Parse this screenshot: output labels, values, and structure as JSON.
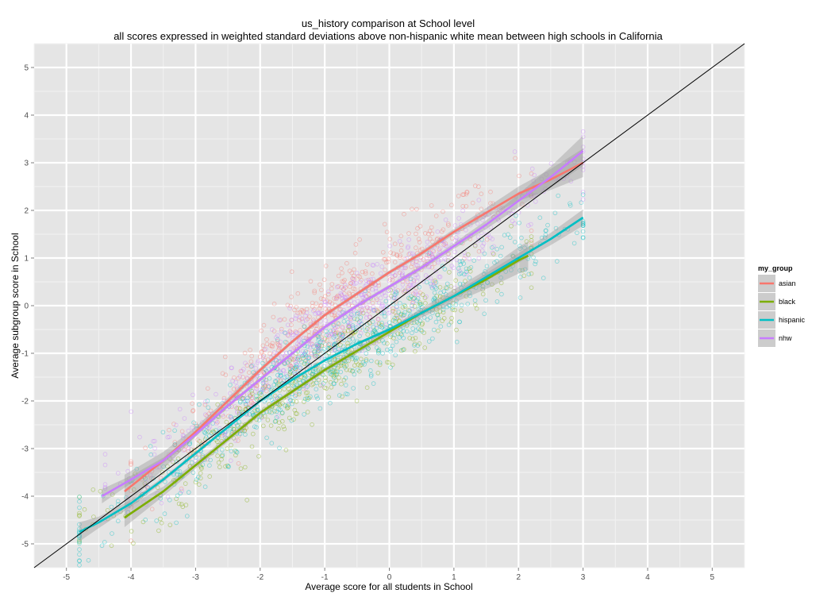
{
  "chart_data": {
    "type": "scatter",
    "title": "us_history comparison at School level",
    "subtitle": "all scores expressed in weighted standard deviations above non-hispanic white mean between high schools in California",
    "xlabel": "Average score for all students in School",
    "ylabel": "Average subgroup score in School",
    "xlim": [
      -5.5,
      5.5
    ],
    "ylim": [
      -5.5,
      5.5
    ],
    "x_ticks": [
      "-5",
      "-4",
      "-3",
      "-2",
      "-1",
      "0",
      "1",
      "2",
      "3",
      "4",
      "5"
    ],
    "y_ticks": [
      "5",
      "4",
      "3",
      "2",
      "1",
      "0",
      "-1",
      "-2",
      "-3",
      "-4",
      "-5"
    ],
    "grid": true,
    "reference_line": {
      "slope": 1,
      "intercept": 0,
      "color": "#000000"
    },
    "legend": {
      "title": "my_group",
      "position": "right",
      "entries": [
        "asian",
        "black",
        "hispanic",
        "nhw"
      ]
    },
    "series": [
      {
        "name": "asian",
        "color": "#F8766D",
        "smooth": [
          {
            "x": -4.1,
            "y": -3.9,
            "ci": 0.35
          },
          {
            "x": -3.5,
            "y": -3.25,
            "ci": 0.18
          },
          {
            "x": -3.0,
            "y": -2.65,
            "ci": 0.1
          },
          {
            "x": -2.5,
            "y": -2.0,
            "ci": 0.07
          },
          {
            "x": -2.0,
            "y": -1.35,
            "ci": 0.05
          },
          {
            "x": -1.5,
            "y": -0.75,
            "ci": 0.04
          },
          {
            "x": -1.0,
            "y": -0.2,
            "ci": 0.04
          },
          {
            "x": -0.5,
            "y": 0.25,
            "ci": 0.04
          },
          {
            "x": 0.0,
            "y": 0.7,
            "ci": 0.04
          },
          {
            "x": 0.5,
            "y": 1.1,
            "ci": 0.05
          },
          {
            "x": 1.0,
            "y": 1.55,
            "ci": 0.06
          },
          {
            "x": 1.5,
            "y": 1.95,
            "ci": 0.1
          },
          {
            "x": 2.0,
            "y": 2.35,
            "ci": 0.15
          },
          {
            "x": 2.5,
            "y": 2.65,
            "ci": 0.22
          },
          {
            "x": 3.0,
            "y": 3.0,
            "ci": 0.3
          }
        ],
        "cloud": {
          "x_min": -4.0,
          "x_max": 2.2,
          "center_offset": 0.55,
          "spread": 0.45,
          "n": 500
        }
      },
      {
        "name": "black",
        "color": "#7CAE00",
        "smooth": [
          {
            "x": -4.1,
            "y": -4.45,
            "ci": 0.2
          },
          {
            "x": -3.5,
            "y": -3.9,
            "ci": 0.1
          },
          {
            "x": -3.0,
            "y": -3.35,
            "ci": 0.07
          },
          {
            "x": -2.5,
            "y": -2.8,
            "ci": 0.06
          },
          {
            "x": -2.0,
            "y": -2.25,
            "ci": 0.05
          },
          {
            "x": -1.5,
            "y": -1.8,
            "ci": 0.05
          },
          {
            "x": -1.0,
            "y": -1.35,
            "ci": 0.05
          },
          {
            "x": -0.5,
            "y": -0.95,
            "ci": 0.06
          },
          {
            "x": 0.0,
            "y": -0.55,
            "ci": 0.07
          },
          {
            "x": 0.5,
            "y": -0.15,
            "ci": 0.1
          },
          {
            "x": 1.0,
            "y": 0.2,
            "ci": 0.14
          },
          {
            "x": 1.5,
            "y": 0.55,
            "ci": 0.2
          },
          {
            "x": 2.0,
            "y": 0.95,
            "ci": 0.28
          },
          {
            "x": 2.15,
            "y": 1.05,
            "ci": 0.3
          }
        ],
        "cloud": {
          "x_min": -4.8,
          "x_max": 2.2,
          "center_offset": -0.3,
          "spread": 0.4,
          "n": 450
        }
      },
      {
        "name": "hispanic",
        "color": "#00BFC4",
        "smooth": [
          {
            "x": -4.8,
            "y": -4.75,
            "ci": 0.2
          },
          {
            "x": -4.5,
            "y": -4.55,
            "ci": 0.12
          },
          {
            "x": -4.0,
            "y": -4.15,
            "ci": 0.07
          },
          {
            "x": -3.5,
            "y": -3.65,
            "ci": 0.05
          },
          {
            "x": -3.0,
            "y": -3.1,
            "ci": 0.04
          },
          {
            "x": -2.5,
            "y": -2.55,
            "ci": 0.03
          },
          {
            "x": -2.0,
            "y": -2.0,
            "ci": 0.03
          },
          {
            "x": -1.5,
            "y": -1.55,
            "ci": 0.03
          },
          {
            "x": -1.0,
            "y": -1.15,
            "ci": 0.03
          },
          {
            "x": -0.5,
            "y": -0.8,
            "ci": 0.03
          },
          {
            "x": 0.0,
            "y": -0.5,
            "ci": 0.04
          },
          {
            "x": 0.5,
            "y": -0.15,
            "ci": 0.05
          },
          {
            "x": 1.0,
            "y": 0.2,
            "ci": 0.06
          },
          {
            "x": 1.5,
            "y": 0.6,
            "ci": 0.08
          },
          {
            "x": 2.0,
            "y": 1.0,
            "ci": 0.1
          },
          {
            "x": 2.5,
            "y": 1.4,
            "ci": 0.13
          },
          {
            "x": 3.0,
            "y": 1.85,
            "ci": 0.17
          }
        ],
        "cloud": {
          "x_min": -4.8,
          "x_max": 3.0,
          "center_offset": -0.25,
          "spread": 0.4,
          "n": 700
        }
      },
      {
        "name": "nhw",
        "color": "#C77CFF",
        "smooth": [
          {
            "x": -4.45,
            "y": -4.0,
            "ci": 0.15
          },
          {
            "x": -4.0,
            "y": -3.65,
            "ci": 0.08
          },
          {
            "x": -3.5,
            "y": -3.25,
            "ci": 0.06
          },
          {
            "x": -3.0,
            "y": -2.7,
            "ci": 0.05
          },
          {
            "x": -2.5,
            "y": -2.1,
            "ci": 0.04
          },
          {
            "x": -2.0,
            "y": -1.55,
            "ci": 0.04
          },
          {
            "x": -1.5,
            "y": -1.0,
            "ci": 0.04
          },
          {
            "x": -1.0,
            "y": -0.45,
            "ci": 0.04
          },
          {
            "x": -0.5,
            "y": 0.0,
            "ci": 0.04
          },
          {
            "x": 0.0,
            "y": 0.4,
            "ci": 0.04
          },
          {
            "x": 0.5,
            "y": 0.8,
            "ci": 0.05
          },
          {
            "x": 1.0,
            "y": 1.25,
            "ci": 0.06
          },
          {
            "x": 1.5,
            "y": 1.7,
            "ci": 0.09
          },
          {
            "x": 2.0,
            "y": 2.2,
            "ci": 0.14
          },
          {
            "x": 2.5,
            "y": 2.7,
            "ci": 0.22
          },
          {
            "x": 3.0,
            "y": 3.25,
            "ci": 0.32
          }
        ],
        "cloud": {
          "x_min": -4.4,
          "x_max": 3.0,
          "center_offset": 0.35,
          "spread": 0.4,
          "n": 600
        }
      }
    ]
  }
}
